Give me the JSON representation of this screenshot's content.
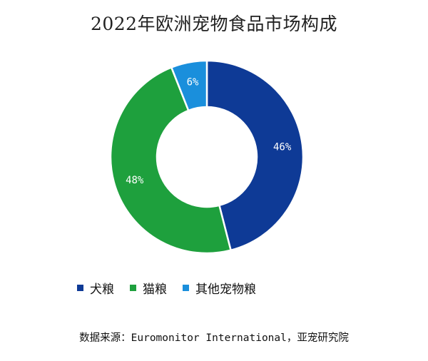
{
  "title": "2022年欧洲宠物食品市场构成",
  "source": "数据来源：Euromonitor International，亚宠研究院",
  "chart_data": {
    "type": "pie",
    "variant": "donut",
    "title": "2022年欧洲宠物食品市场构成",
    "categories": [
      "犬粮",
      "猫粮",
      "其他宠物粮"
    ],
    "values": [
      46,
      48,
      6
    ],
    "labels": [
      "46%",
      "48%",
      "6%"
    ],
    "colors": [
      "#0e3a96",
      "#1ea03d",
      "#1a8fdc"
    ],
    "start_angle_deg": 0,
    "direction": "clockwise",
    "legend_position": "bottom"
  }
}
